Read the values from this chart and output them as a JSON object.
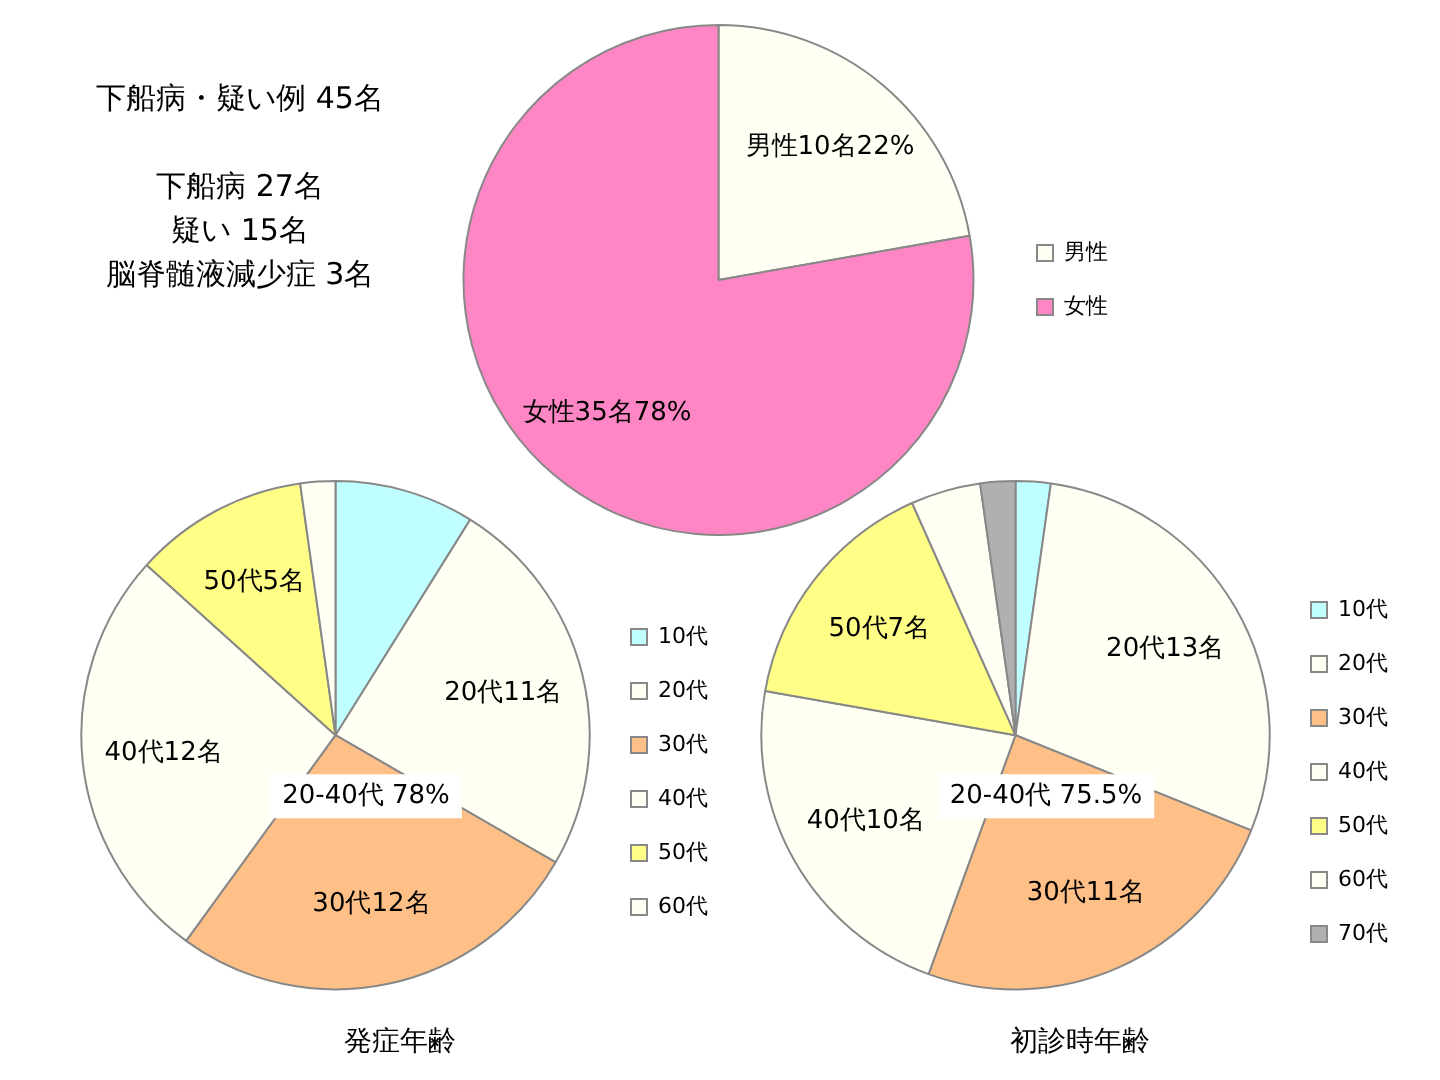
{
  "chart_data": [
    {
      "type": "other",
      "annotations": [
        "下船病・疑い例 45名",
        "下船病 27名",
        "疑い 15名",
        "脳脊髄液減少症 3名"
      ]
    },
    {
      "type": "pie",
      "categories": [
        "男性",
        "女性"
      ],
      "values": [
        10,
        35
      ],
      "colors": [
        "#fffff4",
        "#ff86c4"
      ],
      "value_labels": [
        "男性10名22%",
        "女性35名78%"
      ],
      "legend": "right"
    },
    {
      "type": "pie",
      "title": "発症年齢",
      "categories": [
        "10代",
        "20代",
        "30代",
        "40代",
        "50代",
        "60代"
      ],
      "values": [
        4,
        11,
        12,
        12,
        5,
        1
      ],
      "colors": [
        "#c0ffff",
        "#fffff4",
        "#ffc088",
        "#fffff4",
        "#ffff88",
        "#fffff4"
      ],
      "value_labels": [
        null,
        "20代11名",
        "30代12名",
        "40代12名",
        "50代5名",
        null
      ],
      "annotations": [
        "20-40代 78%"
      ],
      "legend": "right"
    },
    {
      "type": "pie",
      "title": "初診時年齢",
      "categories": [
        "10代",
        "20代",
        "30代",
        "40代",
        "50代",
        "60代",
        "70代"
      ],
      "values": [
        1,
        13,
        11,
        10,
        7,
        2,
        1
      ],
      "colors": [
        "#c0ffff",
        "#fffff4",
        "#ffc088",
        "#fffff4",
        "#ffff88",
        "#fffff4",
        "#b0b0b0"
      ],
      "value_labels": [
        null,
        "20代13名",
        "30代11名",
        "40代10名",
        "50代7名",
        null,
        null
      ],
      "annotations": [
        "20-40代 75.5%"
      ],
      "legend": "right"
    }
  ]
}
